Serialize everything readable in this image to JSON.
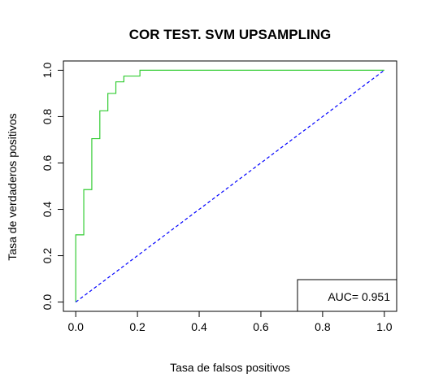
{
  "chart_data": {
    "type": "line",
    "title": "COR TEST. SVM UPSAMPLING",
    "xlabel": "Tasa de falsos positivos",
    "ylabel": "Tasa de verdaderos positivos",
    "xlim": [
      0,
      1
    ],
    "ylim": [
      0,
      1
    ],
    "x_ticks": [
      "0.0",
      "0.2",
      "0.4",
      "0.6",
      "0.8",
      "1.0"
    ],
    "y_ticks": [
      "0.0",
      "0.2",
      "0.4",
      "0.6",
      "0.8",
      "1.0"
    ],
    "grid": false,
    "series": [
      {
        "color": "#33cc33",
        "style": "step",
        "points": [
          [
            0.0,
            0.0
          ],
          [
            0.0,
            0.29
          ],
          [
            0.026,
            0.29
          ],
          [
            0.026,
            0.485
          ],
          [
            0.052,
            0.485
          ],
          [
            0.052,
            0.705
          ],
          [
            0.078,
            0.705
          ],
          [
            0.078,
            0.825
          ],
          [
            0.104,
            0.825
          ],
          [
            0.104,
            0.9
          ],
          [
            0.13,
            0.9
          ],
          [
            0.13,
            0.95
          ],
          [
            0.156,
            0.95
          ],
          [
            0.156,
            0.975
          ],
          [
            0.208,
            0.975
          ],
          [
            0.208,
            1.0
          ],
          [
            1.0,
            1.0
          ]
        ]
      },
      {
        "color": "#0000ff",
        "style": "dashed",
        "points": [
          [
            0,
            0
          ],
          [
            1,
            1
          ]
        ]
      }
    ],
    "annotation": {
      "text": "AUC= 0.951",
      "placement": "bottom-right",
      "boxed": true
    }
  }
}
